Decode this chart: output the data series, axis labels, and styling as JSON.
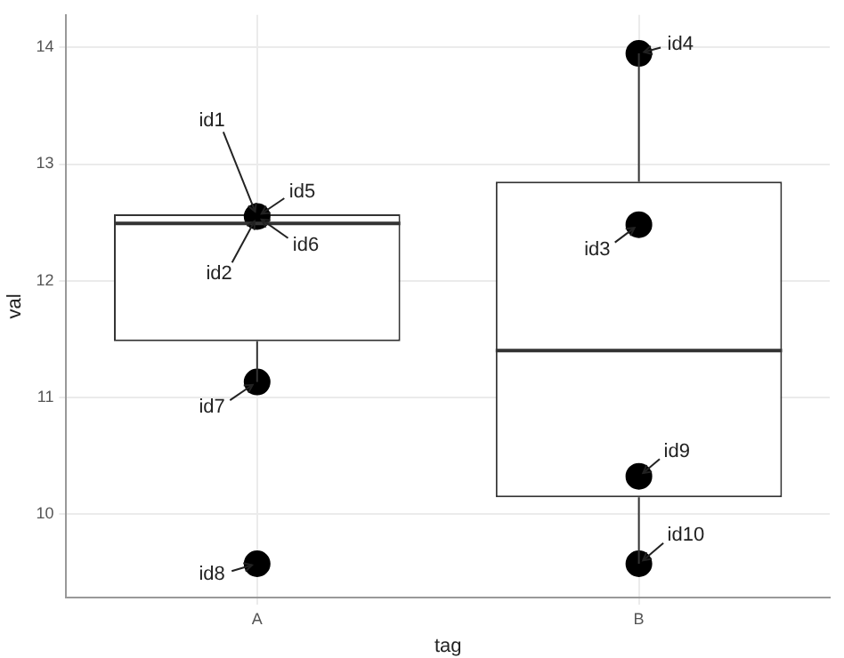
{
  "chart_data": {
    "type": "box",
    "xlabel": "tag",
    "ylabel": "val",
    "categories": [
      "A",
      "B"
    ],
    "boxes": [
      {
        "low": 11.13,
        "q1": 11.48,
        "median": 12.49,
        "q3": 12.57,
        "high": 12.57
      },
      {
        "low": 9.57,
        "q1": 10.14,
        "median": 11.4,
        "q3": 12.85,
        "high": 13.95
      }
    ],
    "series": [
      {
        "type": "scatter",
        "color": "#000000",
        "x": [
          "A",
          "A",
          "A",
          "B",
          "B",
          "B",
          "B"
        ],
        "values": [
          12.55,
          11.13,
          9.57,
          12.48,
          13.95,
          10.32,
          9.57
        ]
      }
    ],
    "ylim": [
      9.28,
      14.28
    ],
    "yticks": [
      10,
      11,
      12,
      13,
      14
    ],
    "grid": true,
    "marker": "circle",
    "annotations": [
      {
        "text": "id1",
        "x": "A",
        "y": 12.55
      },
      {
        "text": "id2",
        "x": "A",
        "y": 12.55
      },
      {
        "text": "id3",
        "x": "B",
        "y": 12.48
      },
      {
        "text": "id4",
        "x": "B",
        "y": 13.95
      },
      {
        "text": "id5",
        "x": "A",
        "y": 12.55
      },
      {
        "text": "id6",
        "x": "A",
        "y": 12.55
      },
      {
        "text": "id7",
        "x": "A",
        "y": 11.13
      },
      {
        "text": "id8",
        "x": "A",
        "y": 9.57
      },
      {
        "text": "id9",
        "x": "B",
        "y": 10.32
      },
      {
        "text": "id10",
        "x": "B",
        "y": 9.57
      }
    ]
  }
}
